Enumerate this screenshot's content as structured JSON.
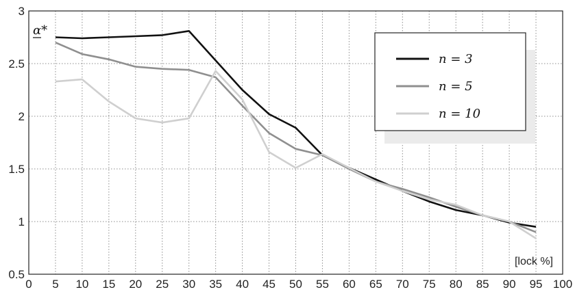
{
  "chart_data": {
    "type": "line",
    "ylabel": "α*",
    "xlabel": "[lock %]",
    "xlim": [
      0,
      100
    ],
    "ylim": [
      0.5,
      3
    ],
    "x_ticks": [
      "0",
      "5",
      "10",
      "15",
      "20",
      "25",
      "30",
      "35",
      "40",
      "45",
      "50",
      "55",
      "60",
      "65",
      "70",
      "75",
      "80",
      "85",
      "90",
      "95",
      "100"
    ],
    "y_ticks": [
      "0.5",
      "1",
      "1.5",
      "2",
      "2.5",
      "3"
    ],
    "grid": true,
    "legend_position": "top-right",
    "x": [
      5,
      10,
      15,
      20,
      25,
      30,
      35,
      40,
      45,
      50,
      55,
      60,
      65,
      70,
      75,
      80,
      85,
      90,
      95
    ],
    "series": [
      {
        "name": "n = 3",
        "color": "#111111",
        "values": [
          2.75,
          2.74,
          2.75,
          2.76,
          2.77,
          2.81,
          2.53,
          2.25,
          2.02,
          1.89,
          1.63,
          1.51,
          1.4,
          1.29,
          1.19,
          1.11,
          1.06,
          0.99,
          0.95
        ]
      },
      {
        "name": "n = 5",
        "color": "#8f8f8f",
        "values": [
          2.7,
          2.59,
          2.54,
          2.47,
          2.45,
          2.44,
          2.37,
          2.1,
          1.84,
          1.69,
          1.63,
          1.5,
          1.38,
          1.31,
          1.23,
          1.14,
          1.06,
          1.0,
          0.9
        ]
      },
      {
        "name": "n = 10",
        "color": "#cfcfcf",
        "values": [
          2.33,
          2.35,
          2.14,
          1.98,
          1.94,
          1.98,
          2.43,
          2.16,
          1.66,
          1.51,
          1.64,
          1.51,
          1.38,
          1.29,
          1.21,
          1.16,
          1.06,
          1.0,
          0.84
        ]
      }
    ]
  }
}
